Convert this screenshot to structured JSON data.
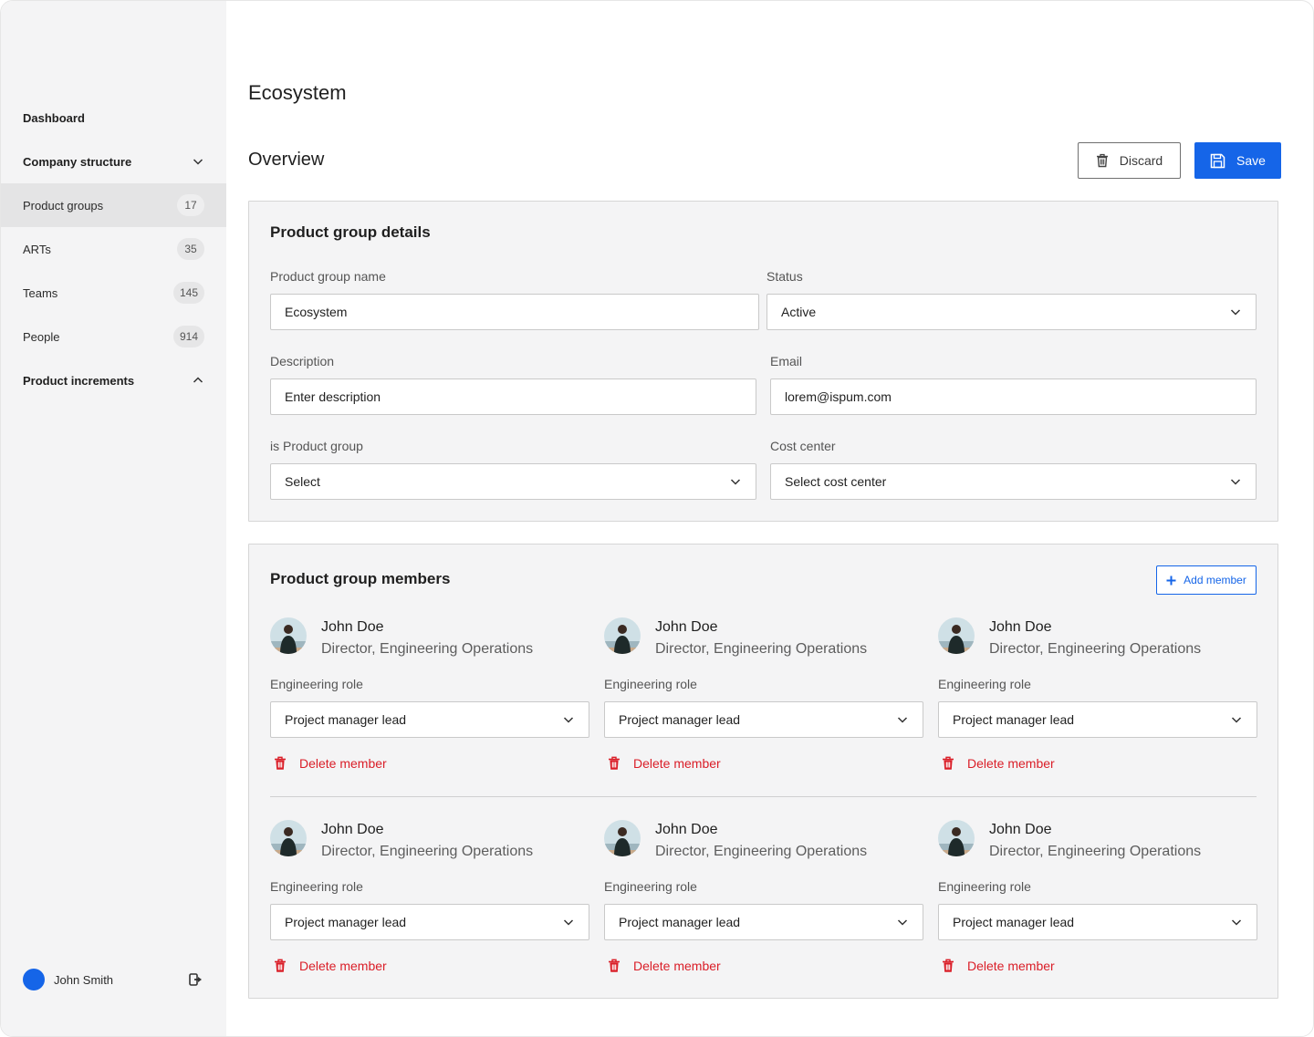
{
  "sidebar": {
    "dashboard": "Dashboard",
    "company_structure": "Company structure",
    "items": [
      {
        "label": "Product groups",
        "count": "17"
      },
      {
        "label": "ARTs",
        "count": "35"
      },
      {
        "label": "Teams",
        "count": "145"
      },
      {
        "label": "People",
        "count": "914"
      }
    ],
    "product_increments": "Product increments",
    "user_name": "John Smith"
  },
  "main": {
    "page_title": "Ecosystem",
    "section_title": "Overview",
    "discard_label": "Discard",
    "save_label": "Save",
    "accent_color": "#1565e8",
    "danger_color": "#da1e28"
  },
  "details": {
    "title": "Product group details",
    "name_label": "Product group name",
    "name_value": "Ecosystem",
    "status_label": "Status",
    "status_value": "Active",
    "description_label": "Description",
    "description_placeholder": "Enter description",
    "email_label": "Email",
    "email_value": "lorem@ispum.com",
    "is_group_label": "is Product group",
    "is_group_value": "Select",
    "cost_center_label": "Cost center",
    "cost_center_value": "Select cost center"
  },
  "members": {
    "title": "Product group members",
    "add_label": "Add member",
    "list": [
      {
        "name": "John Doe",
        "title": "Director, Engineering Operations",
        "role_label": "Engineering role",
        "role_value": "Project manager lead",
        "delete_label": "Delete member"
      },
      {
        "name": "John Doe",
        "title": "Director, Engineering Operations",
        "role_label": "Engineering role",
        "role_value": "Project manager lead",
        "delete_label": "Delete member"
      },
      {
        "name": "John Doe",
        "title": "Director, Engineering Operations",
        "role_label": "Engineering role",
        "role_value": "Project manager lead",
        "delete_label": "Delete member"
      },
      {
        "name": "John Doe",
        "title": "Director, Engineering Operations",
        "role_label": "Engineering role",
        "role_value": "Project manager lead",
        "delete_label": "Delete member"
      },
      {
        "name": "John Doe",
        "title": "Director, Engineering Operations",
        "role_label": "Engineering role",
        "role_value": "Project manager lead",
        "delete_label": "Delete member"
      },
      {
        "name": "John Doe",
        "title": "Director, Engineering Operations",
        "role_label": "Engineering role",
        "role_value": "Project manager lead",
        "delete_label": "Delete member"
      }
    ]
  }
}
